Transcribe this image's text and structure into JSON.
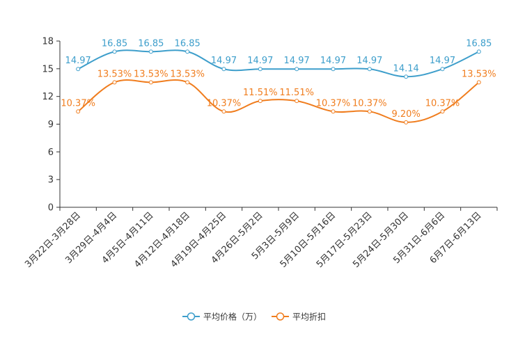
{
  "chart_data": {
    "type": "line",
    "categories": [
      "3月22日-3月28日",
      "3月29日-4月4日",
      "4月5日-4月11日",
      "4月12日-4月18日",
      "4月19日-4月25日",
      "4月26日-5月2日",
      "5月3日-5月9日",
      "5月10日-5月16日",
      "5月17日-5月23日",
      "5月24日-5月30日",
      "5月31日-6月6日",
      "6月7日-6月13日"
    ],
    "ylim": [
      0,
      18
    ],
    "yticks": [
      "0",
      "3",
      "6",
      "9",
      "12",
      "15",
      "18"
    ],
    "smooth": true,
    "series": [
      {
        "name": "平均价格（万）",
        "color": "#3d9ecb",
        "values": [
          14.97,
          16.85,
          16.85,
          16.85,
          14.97,
          14.97,
          14.97,
          14.97,
          14.97,
          14.14,
          14.97,
          16.85
        ],
        "labels": [
          "14.97",
          "16.85",
          "16.85",
          "16.85",
          "14.97",
          "14.97",
          "14.97",
          "14.97",
          "14.97",
          "14.14",
          "14.97",
          "16.85"
        ]
      },
      {
        "name": "平均折扣",
        "color": "#f07d1e",
        "values": [
          10.37,
          13.53,
          13.53,
          13.53,
          10.37,
          11.51,
          11.51,
          10.37,
          10.37,
          9.2,
          10.37,
          13.53
        ],
        "labels": [
          "10.37%",
          "13.53%",
          "13.53%",
          "13.53%",
          "10.37%",
          "11.51%",
          "11.51%",
          "10.37%",
          "10.37%",
          "9.20%",
          "10.37%",
          "13.53%"
        ]
      }
    ]
  }
}
